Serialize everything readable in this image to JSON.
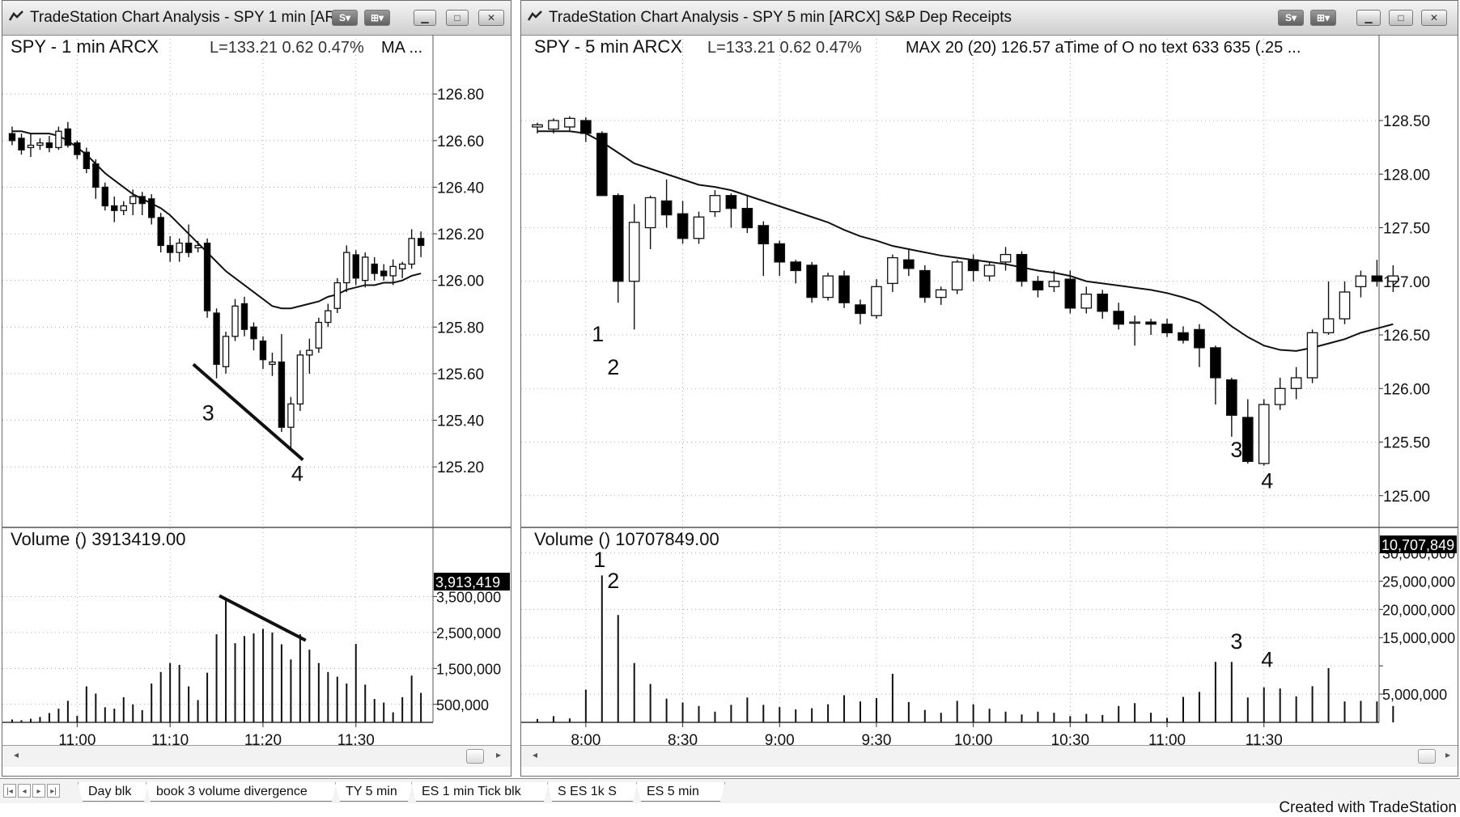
{
  "left_window": {
    "title": "TradeStation Chart Analysis - SPY 1 min [AR...",
    "header_symbol": "SPY - 1 min ARCX",
    "header_last": "L=133.21 0.62 0.47%",
    "header_study": "MA ...",
    "volume_label": "Volume () 3913419.00",
    "volume_badge": "3,913,419"
  },
  "right_window": {
    "title": "TradeStation Chart Analysis - SPY 5 min [ARCX] S&P Dep Receipts",
    "header_symbol": "SPY - 5 min ARCX",
    "header_last": "L=133.21 0.62 0.47%",
    "header_study": "MAX 20 (20) 126.57 aTime of O no text 633 635 (.25 ...",
    "volume_label": "Volume () 10707849.00",
    "volume_badge": "10,707,849"
  },
  "tabs": [
    "Day blk",
    "book 3 volume divergence",
    "TY 5 min",
    "ES 1 min Tick blk",
    "S ES 1k S",
    "ES 5 min"
  ],
  "footer": "Created with TradeStation",
  "colors": {
    "up": "#ffffff",
    "down": "#000000",
    "line": "#000000",
    "grid": "#9a9a9a",
    "badge": "#000000"
  },
  "chart_data": [
    {
      "type": "candlestick",
      "id": "left",
      "price_ticks": [
        126.8,
        126.6,
        126.4,
        126.2,
        126.0,
        125.8,
        125.6,
        125.4,
        125.2
      ],
      "price_tick_labels": [
        "126.80",
        "126.60",
        "126.40",
        "126.20",
        "126.00",
        "125.80",
        "125.60",
        "125.40",
        "125.20"
      ],
      "ylim": [
        125.1,
        126.87
      ],
      "time_ticks": [
        {
          "i": 7,
          "label": "11:00"
        },
        {
          "i": 17,
          "label": "11:10"
        },
        {
          "i": 27,
          "label": "11:20"
        },
        {
          "i": 37,
          "label": "11:30"
        }
      ],
      "ohlc": [
        [
          126.63,
          126.66,
          126.58,
          126.6
        ],
        [
          126.61,
          126.63,
          126.54,
          126.56
        ],
        [
          126.57,
          126.63,
          126.53,
          126.58
        ],
        [
          126.58,
          126.61,
          126.56,
          126.59
        ],
        [
          126.59,
          126.62,
          126.55,
          126.57
        ],
        [
          126.57,
          126.66,
          126.56,
          126.64
        ],
        [
          126.65,
          126.68,
          126.57,
          126.58
        ],
        [
          126.59,
          126.6,
          126.52,
          126.54
        ],
        [
          126.55,
          126.57,
          126.46,
          126.48
        ],
        [
          126.5,
          126.52,
          126.35,
          126.4
        ],
        [
          126.4,
          126.42,
          126.3,
          126.32
        ],
        [
          126.32,
          126.36,
          126.25,
          126.3
        ],
        [
          126.3,
          126.34,
          126.28,
          126.32
        ],
        [
          126.33,
          126.39,
          126.28,
          126.36
        ],
        [
          126.36,
          126.38,
          126.28,
          126.33
        ],
        [
          126.35,
          126.37,
          126.24,
          126.27
        ],
        [
          126.27,
          126.29,
          126.12,
          126.15
        ],
        [
          126.15,
          126.19,
          126.08,
          126.12
        ],
        [
          126.12,
          126.18,
          126.08,
          126.16
        ],
        [
          126.16,
          126.24,
          126.1,
          126.12
        ],
        [
          126.14,
          126.17,
          126.12,
          126.15
        ],
        [
          126.16,
          126.18,
          125.84,
          125.87
        ],
        [
          125.86,
          125.88,
          125.58,
          125.64
        ],
        [
          125.63,
          125.78,
          125.6,
          125.76
        ],
        [
          125.76,
          125.92,
          125.74,
          125.89
        ],
        [
          125.9,
          125.93,
          125.76,
          125.79
        ],
        [
          125.8,
          125.82,
          125.7,
          125.75
        ],
        [
          125.74,
          125.76,
          125.62,
          125.66
        ],
        [
          125.64,
          125.69,
          125.59,
          125.65
        ],
        [
          125.65,
          125.77,
          125.35,
          125.37
        ],
        [
          125.37,
          125.5,
          125.27,
          125.47
        ],
        [
          125.47,
          125.7,
          125.44,
          125.68
        ],
        [
          125.68,
          125.75,
          125.6,
          125.7
        ],
        [
          125.71,
          125.84,
          125.69,
          125.82
        ],
        [
          125.82,
          125.9,
          125.8,
          125.87
        ],
        [
          125.88,
          126.01,
          125.86,
          125.99
        ],
        [
          125.99,
          126.15,
          125.95,
          126.12
        ],
        [
          126.11,
          126.13,
          125.98,
          126.01
        ],
        [
          126.0,
          126.12,
          125.97,
          126.1
        ],
        [
          126.07,
          126.1,
          126.0,
          126.03
        ],
        [
          126.04,
          126.07,
          126.0,
          126.02
        ],
        [
          126.02,
          126.09,
          125.98,
          126.06
        ],
        [
          126.05,
          126.08,
          126.01,
          126.07
        ],
        [
          126.07,
          126.22,
          126.05,
          126.18
        ],
        [
          126.18,
          126.21,
          126.1,
          126.15
        ]
      ],
      "ma": [
        126.64,
        126.64,
        126.63,
        126.63,
        126.63,
        126.62,
        126.6,
        126.57,
        126.54,
        126.5,
        126.46,
        126.43,
        126.4,
        126.37,
        126.35,
        126.33,
        126.31,
        126.28,
        126.24,
        126.2,
        126.16,
        126.12,
        126.08,
        126.04,
        126.01,
        125.98,
        125.95,
        125.92,
        125.89,
        125.88,
        125.88,
        125.89,
        125.9,
        125.91,
        125.93,
        125.94,
        125.96,
        125.97,
        125.98,
        125.98,
        125.99,
        125.99,
        126.0,
        126.02,
        126.03
      ],
      "annotations": [
        {
          "text": "3",
          "i": 21.1,
          "v": 125.4
        },
        {
          "text": "4",
          "i": 30.7,
          "v": 125.14
        }
      ],
      "trendline": {
        "i1": 19.5,
        "v1": 125.64,
        "i2": 31.3,
        "v2": 125.23
      },
      "volume_ticks": [
        3500000,
        2500000,
        1500000,
        500000
      ],
      "volume_tick_labels": [
        "3,500,000",
        "2,500,000",
        "1,500,000",
        "500,000"
      ],
      "vlim": [
        0,
        3913419
      ],
      "volume": [
        80000,
        60000,
        100000,
        150000,
        260000,
        380000,
        600000,
        180000,
        1000000,
        800000,
        420000,
        380000,
        700000,
        500000,
        340000,
        1080000,
        1400000,
        1650000,
        1600000,
        1000000,
        620000,
        1380000,
        2450000,
        3400000,
        2200000,
        2400000,
        2470000,
        2600000,
        2500000,
        2170000,
        1750000,
        2450000,
        2020000,
        1650000,
        1400000,
        1270000,
        1080000,
        2180000,
        1050000,
        650000,
        550000,
        280000,
        700000,
        1300000,
        820000
      ]
    },
    {
      "type": "candlestick",
      "id": "right",
      "price_ticks": [
        128.5,
        128.0,
        127.5,
        127.0,
        126.5,
        126.0,
        125.5,
        125.0
      ],
      "price_tick_labels": [
        "128.50",
        "128.00",
        "127.50",
        "127.00",
        "126.50",
        "126.00",
        "125.50",
        "125.00"
      ],
      "ylim": [
        124.9,
        128.9
      ],
      "time_ticks": [
        {
          "i": 3,
          "label": "8:00"
        },
        {
          "i": 9,
          "label": "8:30"
        },
        {
          "i": 15,
          "label": "9:00"
        },
        {
          "i": 21,
          "label": "9:30"
        },
        {
          "i": 27,
          "label": "10:00"
        },
        {
          "i": 33,
          "label": "10:30"
        },
        {
          "i": 39,
          "label": "11:00"
        },
        {
          "i": 45,
          "label": "11:30"
        }
      ],
      "ohlc": [
        [
          128.44,
          128.48,
          128.38,
          128.46
        ],
        [
          128.42,
          128.52,
          128.38,
          128.5
        ],
        [
          128.44,
          128.54,
          128.4,
          128.52
        ],
        [
          128.5,
          128.53,
          128.3,
          128.38
        ],
        [
          128.38,
          128.4,
          127.8,
          127.8
        ],
        [
          127.8,
          127.82,
          126.8,
          127.0
        ],
        [
          127.0,
          127.72,
          126.55,
          127.55
        ],
        [
          127.5,
          127.8,
          127.3,
          127.78
        ],
        [
          127.75,
          127.95,
          127.5,
          127.62
        ],
        [
          127.63,
          127.75,
          127.35,
          127.4
        ],
        [
          127.4,
          127.65,
          127.35,
          127.6
        ],
        [
          127.65,
          127.85,
          127.6,
          127.8
        ],
        [
          127.8,
          127.82,
          127.5,
          127.68
        ],
        [
          127.68,
          127.8,
          127.45,
          127.5
        ],
        [
          127.52,
          127.56,
          127.05,
          127.35
        ],
        [
          127.35,
          127.38,
          127.05,
          127.18
        ],
        [
          127.18,
          127.2,
          126.98,
          127.1
        ],
        [
          127.15,
          127.18,
          126.8,
          126.85
        ],
        [
          126.85,
          127.08,
          126.82,
          127.05
        ],
        [
          127.05,
          127.1,
          126.75,
          126.8
        ],
        [
          126.78,
          126.83,
          126.6,
          126.7
        ],
        [
          126.68,
          127.02,
          126.65,
          126.95
        ],
        [
          126.98,
          127.25,
          126.9,
          127.22
        ],
        [
          127.2,
          127.3,
          127.05,
          127.12
        ],
        [
          127.1,
          127.15,
          126.8,
          126.85
        ],
        [
          126.85,
          126.95,
          126.78,
          126.92
        ],
        [
          126.92,
          127.2,
          126.88,
          127.18
        ],
        [
          127.2,
          127.25,
          127.0,
          127.1
        ],
        [
          127.05,
          127.18,
          127.0,
          127.15
        ],
        [
          127.18,
          127.32,
          127.1,
          127.25
        ],
        [
          127.25,
          127.28,
          126.95,
          127.0
        ],
        [
          127.0,
          127.05,
          126.85,
          126.92
        ],
        [
          126.95,
          127.1,
          126.9,
          127.0
        ],
        [
          127.02,
          127.1,
          126.7,
          126.75
        ],
        [
          126.75,
          126.95,
          126.7,
          126.88
        ],
        [
          126.88,
          126.92,
          126.65,
          126.72
        ],
        [
          126.72,
          126.8,
          126.55,
          126.6
        ],
        [
          126.62,
          126.68,
          126.4,
          126.62
        ],
        [
          126.62,
          126.65,
          126.5,
          126.6
        ],
        [
          126.6,
          126.65,
          126.48,
          126.52
        ],
        [
          126.52,
          126.58,
          126.42,
          126.45
        ],
        [
          126.55,
          126.6,
          126.2,
          126.38
        ],
        [
          126.38,
          126.4,
          125.85,
          126.1
        ],
        [
          126.08,
          126.1,
          125.55,
          125.75
        ],
        [
          125.73,
          125.9,
          125.3,
          125.32
        ],
        [
          125.3,
          125.9,
          125.28,
          125.85
        ],
        [
          125.85,
          126.1,
          125.8,
          126.0
        ],
        [
          126.0,
          126.2,
          125.9,
          126.1
        ],
        [
          126.1,
          126.55,
          126.05,
          126.52
        ],
        [
          126.52,
          127.0,
          126.5,
          126.65
        ],
        [
          126.65,
          127.0,
          126.6,
          126.9
        ],
        [
          126.95,
          127.1,
          126.85,
          127.05
        ],
        [
          127.05,
          127.2,
          126.95,
          127.0
        ],
        [
          127.0,
          127.15,
          126.9,
          127.05
        ]
      ],
      "ma": [
        128.4,
        128.4,
        128.4,
        128.38,
        128.3,
        128.2,
        128.1,
        128.05,
        128.0,
        127.95,
        127.9,
        127.88,
        127.85,
        127.8,
        127.75,
        127.7,
        127.65,
        127.6,
        127.55,
        127.48,
        127.42,
        127.38,
        127.33,
        127.3,
        127.27,
        127.24,
        127.22,
        127.2,
        127.18,
        127.16,
        127.13,
        127.1,
        127.08,
        127.05,
        127.0,
        126.98,
        126.96,
        126.94,
        126.92,
        126.89,
        126.85,
        126.8,
        126.7,
        126.58,
        126.48,
        126.4,
        126.36,
        126.35,
        126.38,
        126.42,
        126.46,
        126.52,
        126.56,
        126.6
      ],
      "annotations": [
        {
          "text": "1",
          "i": 3.75,
          "v": 126.44
        },
        {
          "text": "2",
          "i": 4.7,
          "v": 126.13
        },
        {
          "text": "3",
          "i": 43.3,
          "v": 125.36
        },
        {
          "text": "4",
          "i": 45.2,
          "v": 125.07
        }
      ],
      "volume_ticks": [
        30000000,
        25000000,
        20000000,
        15000000,
        10000000,
        5000000
      ],
      "volume_tick_labels": [
        "30,000,000",
        "25,000,000",
        "20,000,000",
        "15,000,000",
        "",
        "5,000,000"
      ],
      "vlim": [
        0,
        31500000
      ],
      "volume": [
        600000,
        1100000,
        700000,
        5800000,
        26000000,
        19000000,
        10500000,
        6800000,
        4200000,
        3500000,
        2900000,
        1900000,
        3100000,
        4400000,
        3100000,
        2700000,
        2300000,
        2500000,
        3200000,
        4800000,
        3700000,
        4300000,
        8600000,
        3600000,
        2200000,
        1700000,
        3800000,
        3200000,
        2400000,
        1900000,
        1400000,
        1900000,
        1700000,
        1100000,
        1500000,
        1300000,
        2900000,
        3400000,
        1700000,
        800000,
        4500000,
        5400000,
        10700000,
        10700000,
        4400000,
        6200000,
        6000000,
        4600000,
        6400000,
        9600000,
        3700000,
        3800000,
        3700000,
        2900000
      ]
    }
  ]
}
